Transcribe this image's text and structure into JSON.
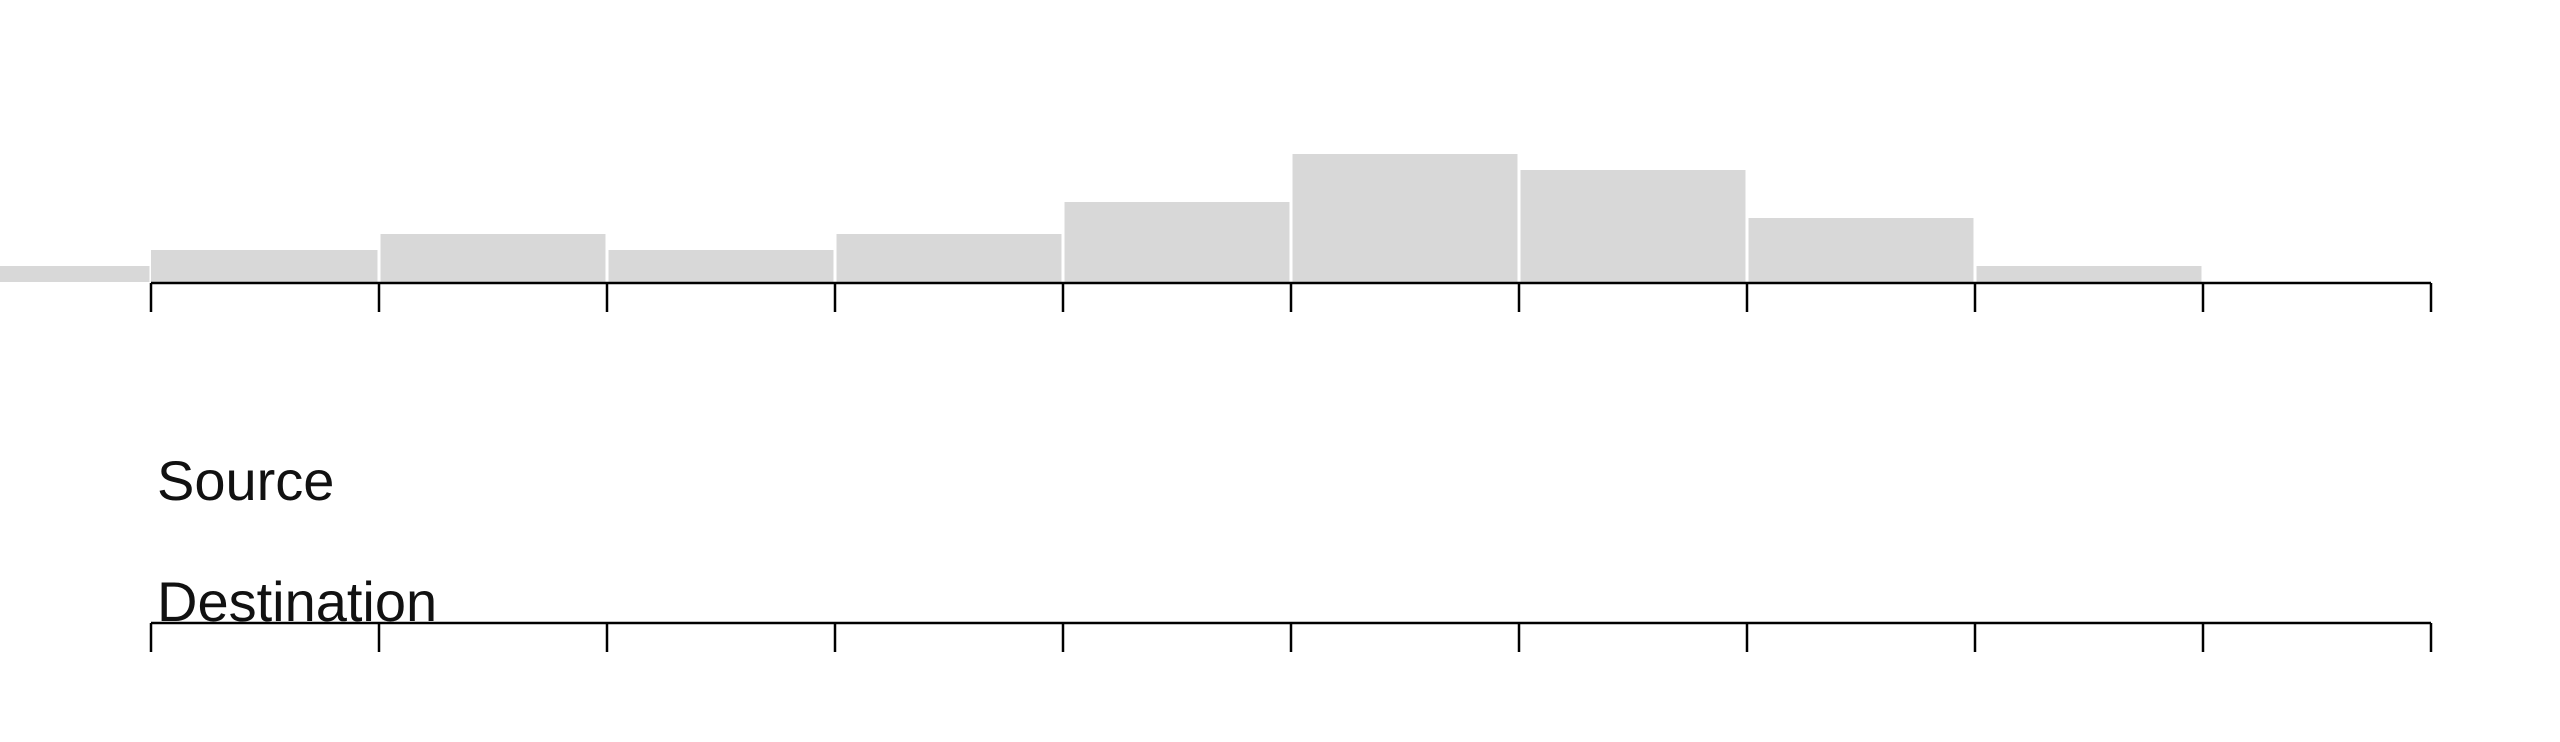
{
  "chart_data": {
    "type": "bar",
    "description": "Histogram with two axes",
    "bins": [
      {
        "lo": -1,
        "hi": 0,
        "count": 1
      },
      {
        "lo": 0,
        "hi": 1,
        "count": 2
      },
      {
        "lo": 1,
        "hi": 2,
        "count": 3
      },
      {
        "lo": 2,
        "hi": 3,
        "count": 2
      },
      {
        "lo": 3,
        "hi": 4,
        "count": 3
      },
      {
        "lo": 4,
        "hi": 5,
        "count": 5
      },
      {
        "lo": 5,
        "hi": 6,
        "count": 8
      },
      {
        "lo": 6,
        "hi": 7,
        "count": 7
      },
      {
        "lo": 7,
        "hi": 8,
        "count": 4
      },
      {
        "lo": 8,
        "hi": 9,
        "count": 1
      },
      {
        "lo": 9,
        "hi": 10,
        "count": 0
      }
    ],
    "axes": [
      {
        "label": "Source",
        "ticks": [
          0,
          1,
          2,
          3,
          4,
          5,
          6,
          7,
          8,
          9,
          10
        ],
        "tick_labels_shown": false
      },
      {
        "label": "Destination",
        "ticks": [
          0,
          1,
          2,
          3,
          4,
          5,
          6,
          7,
          8,
          9,
          10
        ],
        "tick_labels_shown": false
      }
    ],
    "xlim": [
      0,
      10
    ],
    "bar_color": "#d8d8d8",
    "axis_color": "#000000",
    "grid": false,
    "legend": "none"
  }
}
